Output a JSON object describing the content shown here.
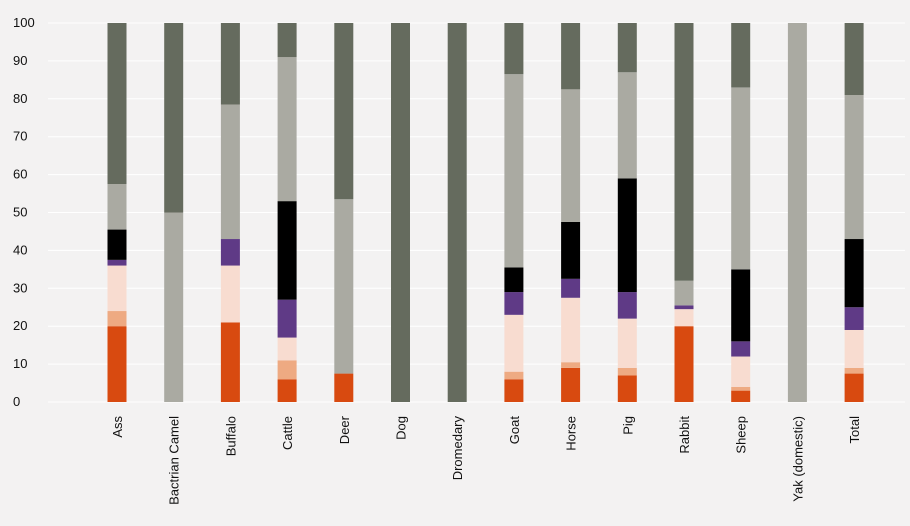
{
  "chart_data": {
    "type": "bar",
    "stacked": true,
    "title": "",
    "xlabel": "",
    "ylabel": "",
    "ylim": [
      0,
      100
    ],
    "yticks": [
      0,
      10,
      20,
      30,
      40,
      50,
      60,
      70,
      80,
      90,
      100
    ],
    "grid": true,
    "legend": "none",
    "categories": [
      "Ass",
      "Bactrian Camel",
      "Buffalo",
      "Cattle",
      "Deer",
      "Dog",
      "Dromedary",
      "Goat",
      "Horse",
      "Pig",
      "Rabbit",
      "Sheep",
      "Yak (domestic)",
      "Total"
    ],
    "series": [
      {
        "color": "#d84a10",
        "values": [
          20,
          0,
          21,
          6,
          7.5,
          0,
          0,
          6,
          9,
          7,
          20,
          3,
          0,
          7.5
        ]
      },
      {
        "color": "#eeaa82",
        "values": [
          4,
          0,
          0,
          5,
          0,
          0,
          0,
          2,
          1.5,
          2,
          0,
          1,
          0,
          1.5
        ]
      },
      {
        "color": "#f8dcd0",
        "values": [
          12,
          0,
          15,
          6,
          0,
          0,
          0,
          15,
          17,
          13,
          4.5,
          8,
          0,
          10
        ]
      },
      {
        "color": "#5f3a86",
        "values": [
          1.5,
          0,
          7,
          10,
          0,
          0,
          0,
          6,
          5,
          7,
          1,
          4,
          0,
          6
        ]
      },
      {
        "color": "#000000",
        "values": [
          8,
          0,
          0,
          26,
          0,
          0,
          0,
          6.5,
          15,
          30,
          0,
          19,
          0,
          18
        ]
      },
      {
        "color": "#aaaaa2",
        "values": [
          12,
          50,
          35.5,
          38,
          46,
          0,
          0,
          51,
          35,
          28,
          6.5,
          48,
          100,
          38
        ]
      },
      {
        "color": "#656b5e",
        "values": [
          42.5,
          50,
          21.5,
          9,
          46.5,
          100,
          100,
          13.5,
          17.5,
          13,
          68,
          17,
          0,
          19
        ]
      }
    ]
  }
}
